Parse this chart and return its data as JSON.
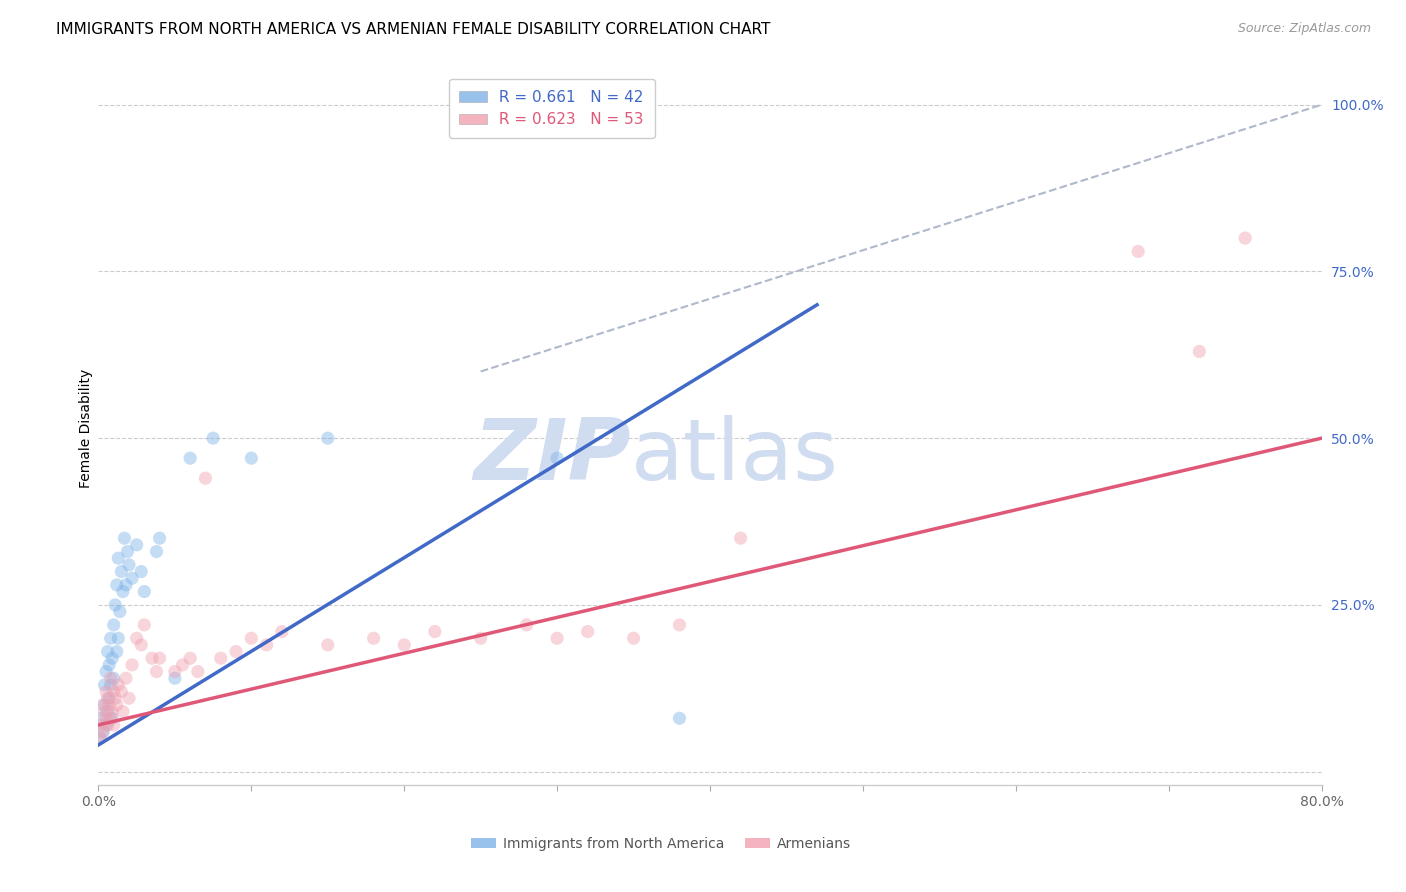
{
  "title": "IMMIGRANTS FROM NORTH AMERICA VS ARMENIAN FEMALE DISABILITY CORRELATION CHART",
  "source": "Source: ZipAtlas.com",
  "ylabel": "Female Disability",
  "xlim": [
    0.0,
    0.8
  ],
  "ylim": [
    -0.02,
    1.05
  ],
  "xticks": [
    0.0,
    0.1,
    0.2,
    0.3,
    0.4,
    0.5,
    0.6,
    0.7,
    0.8
  ],
  "xticklabels": [
    "0.0%",
    "",
    "",
    "",
    "",
    "",
    "",
    "",
    "80.0%"
  ],
  "ytick_positions": [
    0.0,
    0.25,
    0.5,
    0.75,
    1.0
  ],
  "ytick_labels": [
    "",
    "25.0%",
    "50.0%",
    "75.0%",
    "100.0%"
  ],
  "grid_color": "#cccccc",
  "background_color": "#ffffff",
  "blue_color": "#7EB3E8",
  "pink_color": "#F0A0B0",
  "blue_line_color": "#4169C8",
  "pink_line_color": "#E05878",
  "diag_line_color": "#B0B8CC",
  "legend_R_blue": "0.661",
  "legend_N_blue": "42",
  "legend_R_pink": "0.623",
  "legend_N_pink": "53",
  "blue_scatter_x": [
    0.001,
    0.002,
    0.003,
    0.004,
    0.004,
    0.005,
    0.005,
    0.006,
    0.006,
    0.007,
    0.007,
    0.008,
    0.008,
    0.009,
    0.009,
    0.01,
    0.01,
    0.011,
    0.012,
    0.012,
    0.013,
    0.013,
    0.014,
    0.015,
    0.016,
    0.017,
    0.018,
    0.019,
    0.02,
    0.022,
    0.025,
    0.028,
    0.03,
    0.038,
    0.04,
    0.05,
    0.06,
    0.075,
    0.1,
    0.15,
    0.3,
    0.38
  ],
  "blue_scatter_y": [
    0.05,
    0.08,
    0.06,
    0.1,
    0.13,
    0.07,
    0.15,
    0.09,
    0.18,
    0.11,
    0.16,
    0.13,
    0.2,
    0.08,
    0.17,
    0.22,
    0.14,
    0.25,
    0.18,
    0.28,
    0.2,
    0.32,
    0.24,
    0.3,
    0.27,
    0.35,
    0.28,
    0.33,
    0.31,
    0.29,
    0.34,
    0.3,
    0.27,
    0.33,
    0.35,
    0.14,
    0.47,
    0.5,
    0.47,
    0.5,
    0.47,
    0.08
  ],
  "pink_scatter_x": [
    0.001,
    0.002,
    0.003,
    0.003,
    0.004,
    0.005,
    0.005,
    0.006,
    0.006,
    0.007,
    0.008,
    0.008,
    0.009,
    0.01,
    0.01,
    0.011,
    0.012,
    0.013,
    0.015,
    0.016,
    0.018,
    0.02,
    0.022,
    0.025,
    0.028,
    0.03,
    0.035,
    0.038,
    0.04,
    0.05,
    0.055,
    0.06,
    0.065,
    0.07,
    0.08,
    0.09,
    0.1,
    0.11,
    0.12,
    0.15,
    0.18,
    0.2,
    0.22,
    0.25,
    0.28,
    0.3,
    0.32,
    0.35,
    0.38,
    0.42,
    0.68,
    0.72,
    0.75
  ],
  "pink_scatter_y": [
    0.05,
    0.07,
    0.06,
    0.1,
    0.09,
    0.08,
    0.12,
    0.07,
    0.11,
    0.1,
    0.08,
    0.14,
    0.09,
    0.12,
    0.07,
    0.11,
    0.1,
    0.13,
    0.12,
    0.09,
    0.14,
    0.11,
    0.16,
    0.2,
    0.19,
    0.22,
    0.17,
    0.15,
    0.17,
    0.15,
    0.16,
    0.17,
    0.15,
    0.44,
    0.17,
    0.18,
    0.2,
    0.19,
    0.21,
    0.19,
    0.2,
    0.19,
    0.21,
    0.2,
    0.22,
    0.2,
    0.21,
    0.2,
    0.22,
    0.35,
    0.78,
    0.63,
    0.8
  ],
  "blue_line_x": [
    0.0,
    0.47
  ],
  "blue_line_y": [
    0.04,
    0.7
  ],
  "pink_line_x": [
    0.0,
    0.8
  ],
  "pink_line_y": [
    0.07,
    0.5
  ],
  "diag_line_x": [
    0.25,
    0.8
  ],
  "diag_line_y": [
    0.6,
    1.0
  ],
  "marker_size": 90,
  "marker_alpha": 0.45,
  "watermark_zip": "ZIP",
  "watermark_atlas": "atlas",
  "watermark_color": "#D0DCF0",
  "title_fontsize": 11,
  "axis_label_fontsize": 10,
  "tick_fontsize": 10,
  "legend_fontsize": 11,
  "ytick_label_color": "#4169C8"
}
